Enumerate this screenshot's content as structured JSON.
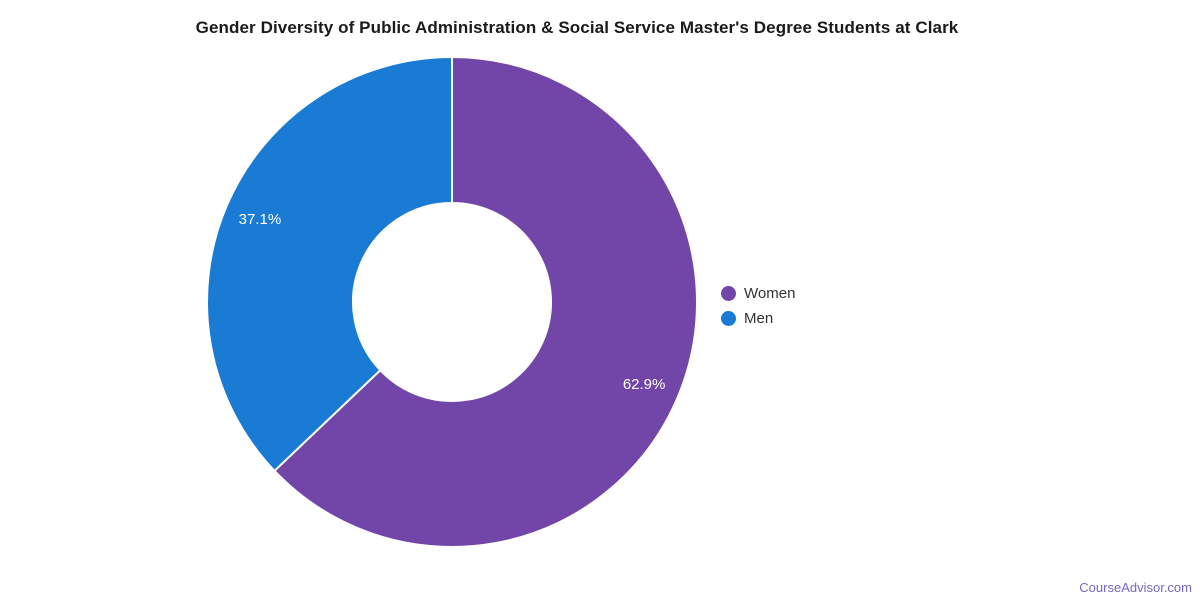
{
  "chart_data": {
    "type": "pie",
    "donut": true,
    "title": "Gender Diversity of Public Administration & Social Service Master's Degree Students at Clark",
    "start_angle_deg": 0,
    "direction": "clockwise",
    "slices": [
      {
        "name": "Women",
        "value": 62.9,
        "label": "62.9%",
        "color": "#7246A8"
      },
      {
        "name": "Men",
        "value": 37.1,
        "label": "37.1%",
        "color": "#1A7BD4"
      }
    ],
    "legend_position": "right",
    "legend_text_color": "#333333",
    "slice_label_color": "#FFFFFF",
    "separator_color": "#FFFFFF",
    "title_color": "#1a1a1a"
  },
  "watermark": {
    "text": "CourseAdvisor.com",
    "color": "#7668BF"
  }
}
